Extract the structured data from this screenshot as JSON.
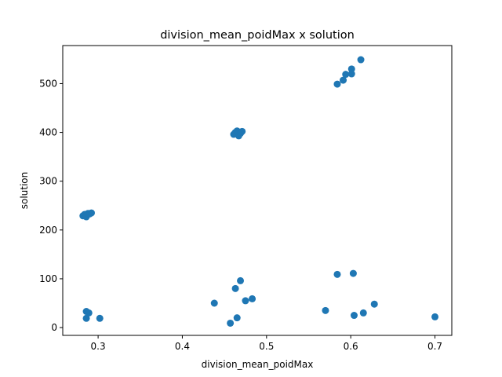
{
  "chart_data": {
    "type": "scatter",
    "title": "division_mean_poidMax x solution",
    "xlabel": "division_mean_poidMax",
    "ylabel": "solution",
    "xlim": [
      0.258,
      0.72
    ],
    "ylim": [
      -16,
      578
    ],
    "xticks": [
      0.3,
      0.4,
      0.5,
      0.6,
      0.7
    ],
    "xtick_labels": [
      "0.3",
      "0.4",
      "0.5",
      "0.6",
      "0.7"
    ],
    "yticks": [
      0,
      100,
      200,
      300,
      400,
      500
    ],
    "ytick_labels": [
      "0",
      "100",
      "200",
      "300",
      "400",
      "500"
    ],
    "grid": false,
    "marker_color": "#1f77b4",
    "points": [
      {
        "x": 0.282,
        "y": 229
      },
      {
        "x": 0.284,
        "y": 232
      },
      {
        "x": 0.286,
        "y": 227
      },
      {
        "x": 0.288,
        "y": 234
      },
      {
        "x": 0.29,
        "y": 233
      },
      {
        "x": 0.292,
        "y": 235
      },
      {
        "x": 0.286,
        "y": 33
      },
      {
        "x": 0.289,
        "y": 30
      },
      {
        "x": 0.286,
        "y": 19
      },
      {
        "x": 0.302,
        "y": 19
      },
      {
        "x": 0.438,
        "y": 50
      },
      {
        "x": 0.457,
        "y": 9
      },
      {
        "x": 0.465,
        "y": 20
      },
      {
        "x": 0.463,
        "y": 80
      },
      {
        "x": 0.469,
        "y": 96
      },
      {
        "x": 0.475,
        "y": 55
      },
      {
        "x": 0.483,
        "y": 59
      },
      {
        "x": 0.461,
        "y": 396
      },
      {
        "x": 0.463,
        "y": 400
      },
      {
        "x": 0.465,
        "y": 403
      },
      {
        "x": 0.467,
        "y": 393
      },
      {
        "x": 0.469,
        "y": 398
      },
      {
        "x": 0.471,
        "y": 402
      },
      {
        "x": 0.57,
        "y": 35
      },
      {
        "x": 0.584,
        "y": 109
      },
      {
        "x": 0.603,
        "y": 111
      },
      {
        "x": 0.604,
        "y": 25
      },
      {
        "x": 0.615,
        "y": 30
      },
      {
        "x": 0.628,
        "y": 48
      },
      {
        "x": 0.7,
        "y": 22
      },
      {
        "x": 0.584,
        "y": 499
      },
      {
        "x": 0.591,
        "y": 507
      },
      {
        "x": 0.594,
        "y": 519
      },
      {
        "x": 0.601,
        "y": 530
      },
      {
        "x": 0.601,
        "y": 520
      },
      {
        "x": 0.612,
        "y": 549
      }
    ]
  }
}
